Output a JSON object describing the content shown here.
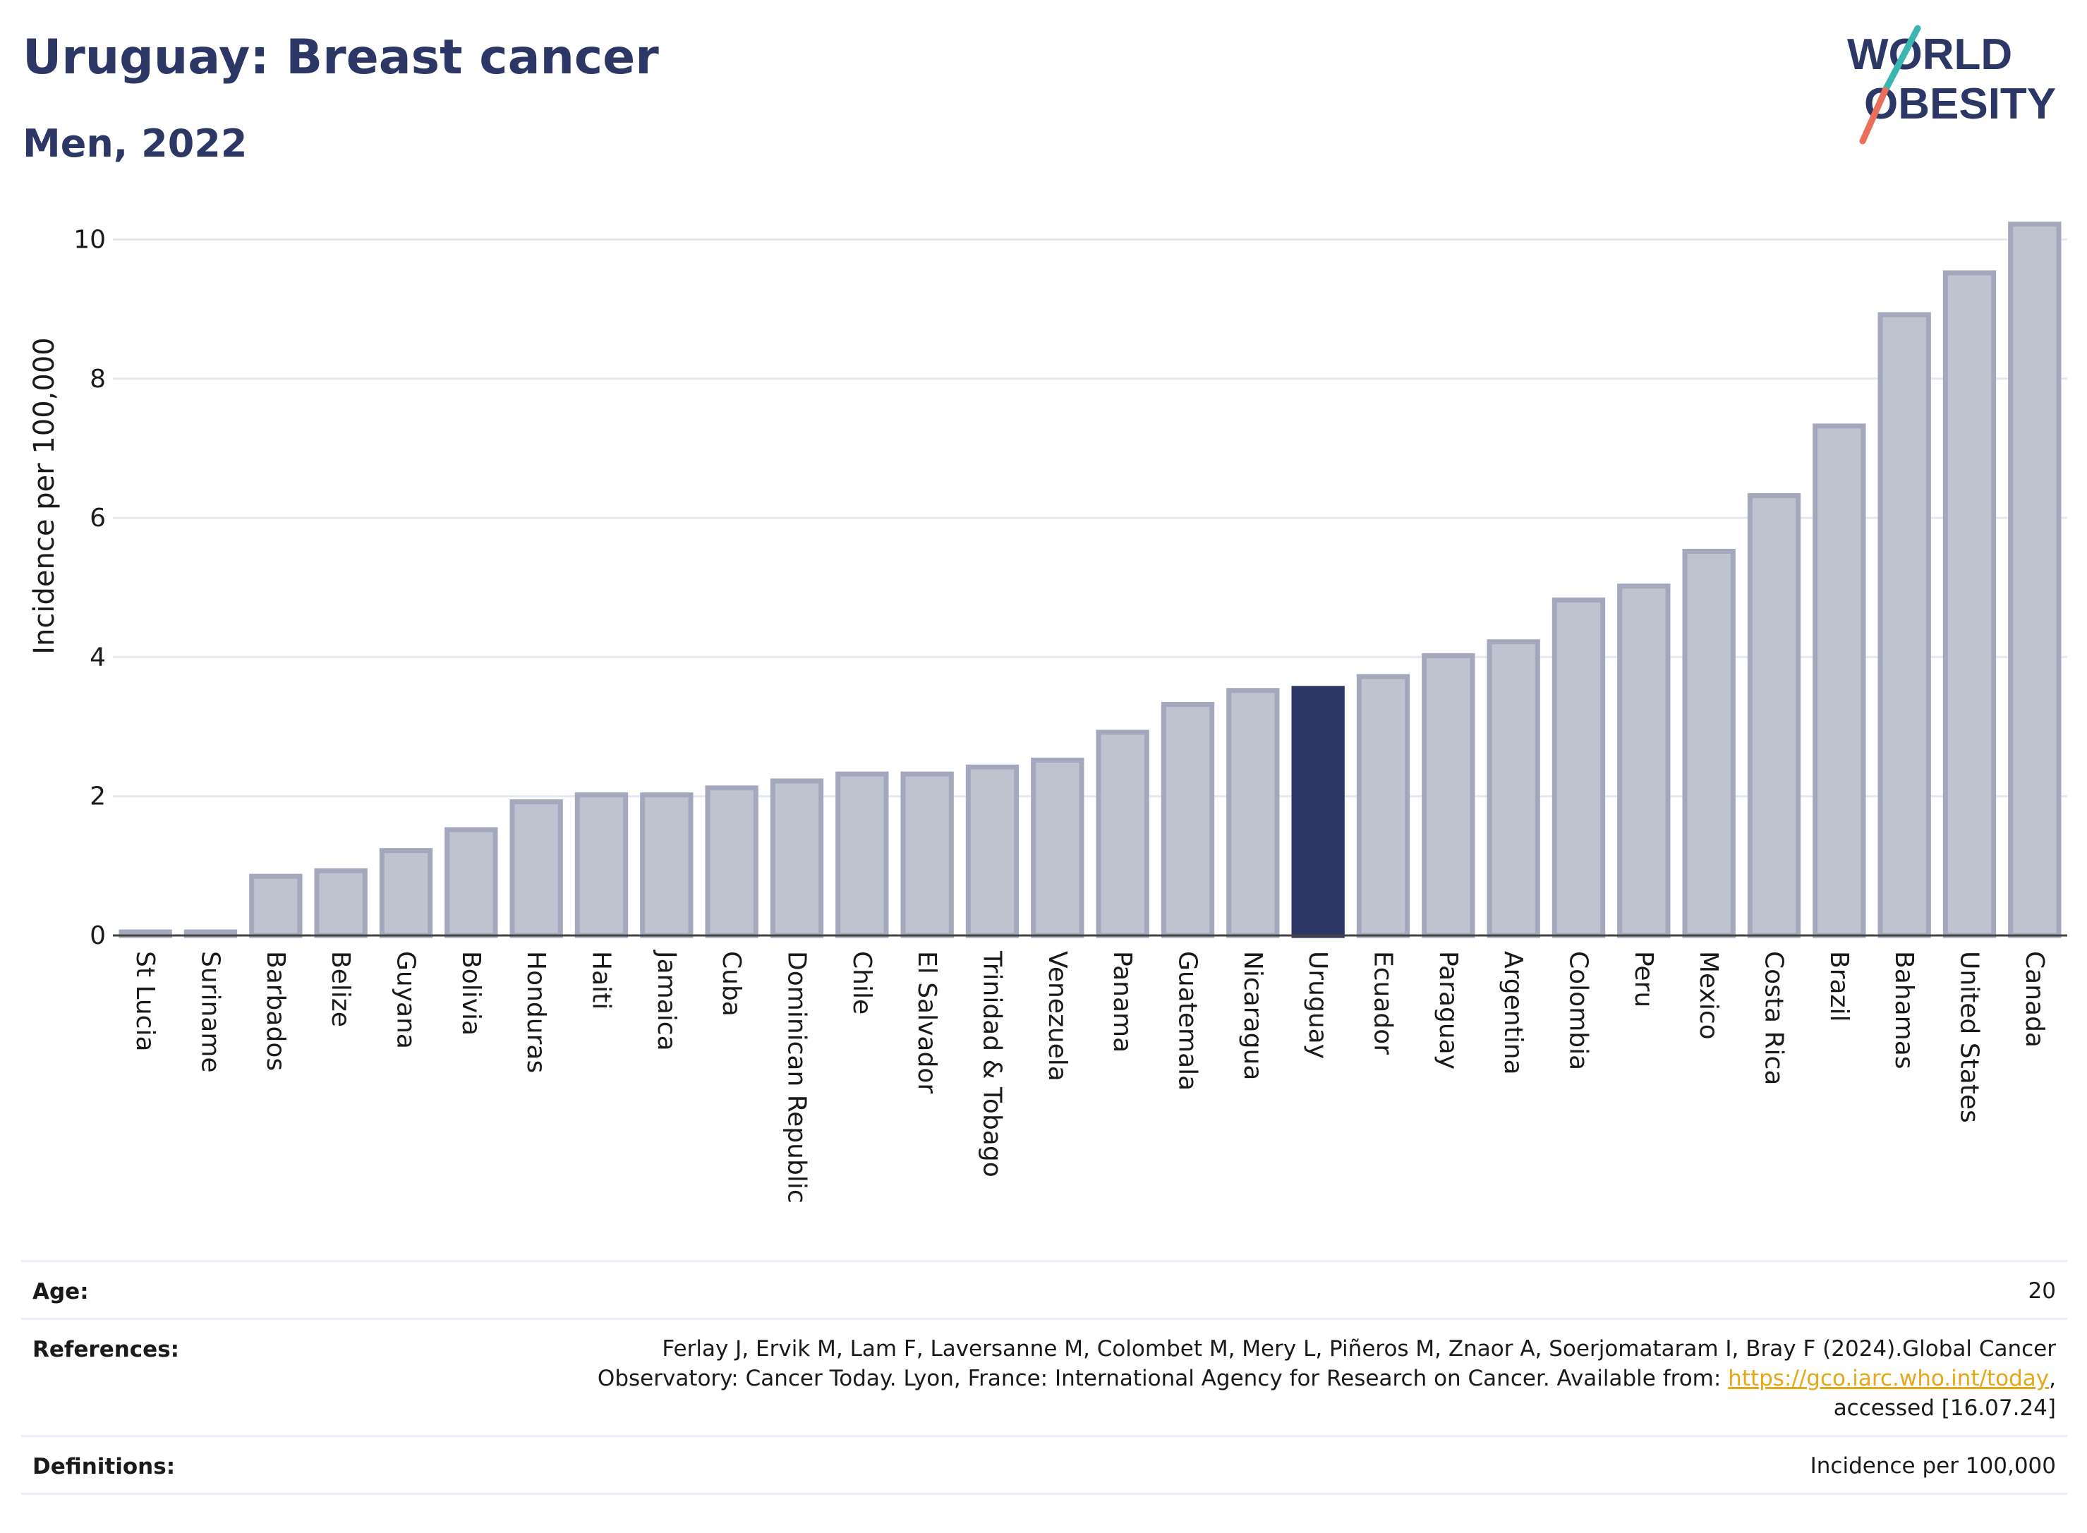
{
  "header": {
    "title": "Uruguay: Breast cancer",
    "subtitle": "Men, 2022"
  },
  "logo": {
    "line1": "WORLD",
    "line2": "OBESITY",
    "colors": {
      "text": "#2c3766",
      "accent_teal": "#3ab5b0",
      "accent_coral": "#e8705a"
    }
  },
  "chart_data": {
    "type": "bar",
    "ylabel": "Incidence per 100,000",
    "xlabel": "",
    "ylim": [
      0,
      10.5
    ],
    "yticks": [
      0,
      2,
      4,
      6,
      8,
      10
    ],
    "grid": true,
    "highlight": "Uruguay",
    "colors": {
      "bar": "#bfc3d0",
      "bar_border": "#a3a8bd",
      "highlight": "#2c3766"
    },
    "categories": [
      "St Lucia",
      "Suriname",
      "Barbados",
      "Belize",
      "Guyana",
      "Bolivia",
      "Honduras",
      "Haiti",
      "Jamaica",
      "Cuba",
      "Dominican Republic",
      "Chile",
      "El Salvador",
      "Trinidad & Tobago",
      "Venezuela",
      "Panama",
      "Guatemala",
      "Nicaragua",
      "Uruguay",
      "Ecuador",
      "Paraguay",
      "Argentina",
      "Colombia",
      "Peru",
      "Mexico",
      "Costa Rica",
      "Brazil",
      "Bahamas",
      "United States",
      "Canada"
    ],
    "values": [
      0.05,
      0.05,
      0.85,
      0.93,
      1.22,
      1.52,
      1.92,
      2.02,
      2.02,
      2.12,
      2.22,
      2.32,
      2.32,
      2.42,
      2.52,
      2.92,
      3.32,
      3.52,
      3.55,
      3.72,
      4.02,
      4.22,
      4.82,
      5.02,
      5.52,
      6.32,
      7.32,
      8.92,
      9.52,
      10.22
    ]
  },
  "meta": {
    "age_label": "Age:",
    "age_value": "20",
    "references_label": "References:",
    "references_line1": "Ferlay J, Ervik M, Lam F, Laversanne M, Colombet M, Mery L, Piñeros M, Znaor A, Soerjomataram I, Bray F (2024).Global Cancer",
    "references_line2_pre": "Observatory: Cancer Today. Lyon, France: International Agency for Research on Cancer. Available from: ",
    "references_link": "https://gco.iarc.who.int/today",
    "references_line2_post": ",",
    "references_line3": "accessed [16.07.24]",
    "definitions_label": "Definitions:",
    "definitions_value": "Incidence per 100,000"
  }
}
